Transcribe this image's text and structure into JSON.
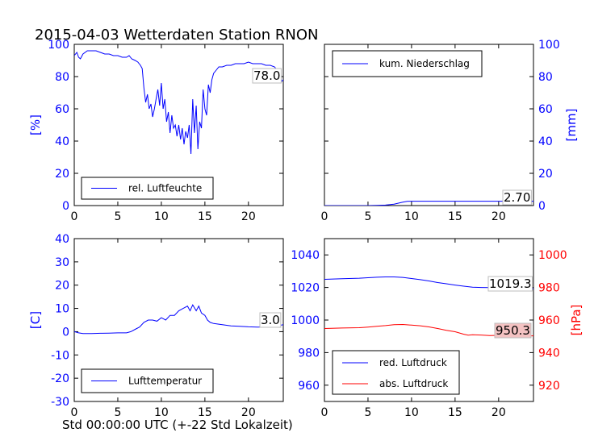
{
  "title": "2015-04-03 Wetterdaten Station RNON",
  "footer": "Std 00:00:00 UTC (+-22 Std Lokalzeit)",
  "colors": {
    "blue": "#0000ff",
    "red": "#ff0000",
    "axes": "#000000"
  },
  "chart_data": [
    {
      "id": "humidity",
      "type": "line",
      "xlim": [
        0,
        24
      ],
      "ylim": [
        0,
        100
      ],
      "xticks": [
        0,
        5,
        10,
        15,
        20
      ],
      "yticks": [
        0,
        20,
        40,
        60,
        80,
        100
      ],
      "ylabel": "[%]",
      "legend": "rel. Luftfeuchte",
      "legend_position": "lower-left",
      "last_value_label": "78.0",
      "series": [
        {
          "name": "rel. Luftfeuchte",
          "color": "#0000ff",
          "x": [
            0,
            0.3,
            0.5,
            0.7,
            1,
            1.5,
            2,
            2.5,
            3,
            3.5,
            4,
            4.5,
            5,
            5.5,
            6,
            6.3,
            6.6,
            7,
            7.3,
            7.6,
            7.8,
            8,
            8.2,
            8.4,
            8.6,
            8.8,
            9,
            9.2,
            9.4,
            9.6,
            9.8,
            10,
            10.2,
            10.4,
            10.6,
            10.8,
            11,
            11.2,
            11.4,
            11.6,
            11.8,
            12,
            12.2,
            12.4,
            12.6,
            12.8,
            13,
            13.2,
            13.4,
            13.6,
            13.8,
            14,
            14.2,
            14.4,
            14.6,
            14.8,
            15,
            15.2,
            15.4,
            15.6,
            15.8,
            16,
            16.3,
            16.6,
            17,
            17.5,
            18,
            18.5,
            19,
            19.5,
            20,
            20.5,
            21,
            21.5,
            22,
            22.5,
            23,
            23.3,
            23.6,
            23.8,
            24
          ],
          "y": [
            93,
            95,
            92,
            91,
            94,
            96,
            96,
            96,
            95,
            94,
            94,
            93,
            93,
            92,
            92,
            93,
            91,
            90,
            89,
            87,
            85,
            73,
            64,
            69,
            60,
            63,
            55,
            60,
            66,
            72,
            62,
            76,
            60,
            66,
            52,
            58,
            45,
            56,
            48,
            50,
            43,
            50,
            41,
            48,
            38,
            46,
            42,
            50,
            32,
            66,
            45,
            62,
            35,
            52,
            48,
            72,
            60,
            56,
            75,
            70,
            78,
            82,
            84,
            86,
            86,
            87,
            87,
            88,
            88,
            88,
            89,
            88,
            88,
            88,
            87,
            87,
            86,
            84,
            82,
            77,
            78
          ]
        }
      ]
    },
    {
      "id": "precipitation",
      "type": "line",
      "xlim": [
        0,
        24
      ],
      "ylim": [
        0,
        100
      ],
      "xticks": [
        0,
        5,
        10,
        15,
        20
      ],
      "yticks": [
        0,
        20,
        40,
        60,
        80,
        100
      ],
      "ylabel": "[mm]",
      "legend": "kum. Niederschlag",
      "legend_position": "upper-left",
      "last_value_label": "2.70",
      "series": [
        {
          "name": "kum. Niederschlag",
          "color": "#0000ff",
          "x": [
            0,
            5,
            6,
            7,
            8,
            8.5,
            9,
            9.5,
            10,
            12,
            15,
            18,
            21,
            24
          ],
          "y": [
            0,
            0,
            0.1,
            0.3,
            0.9,
            1.5,
            2.1,
            2.6,
            2.7,
            2.7,
            2.7,
            2.7,
            2.7,
            2.7
          ]
        }
      ]
    },
    {
      "id": "temperature",
      "type": "line",
      "xlim": [
        0,
        24
      ],
      "ylim": [
        -30,
        40
      ],
      "xticks": [
        0,
        5,
        10,
        15,
        20
      ],
      "yticks": [
        -30,
        -20,
        -10,
        0,
        10,
        20,
        30,
        40
      ],
      "ylabel": "[C]",
      "legend": "Lufttemperatur",
      "legend_position": "lower-left",
      "last_value_label": "3.0",
      "series": [
        {
          "name": "Lufttemperatur",
          "color": "#0000ff",
          "x": [
            0,
            0.5,
            1,
            2,
            3,
            4,
            5,
            6,
            6.5,
            7,
            7.5,
            8,
            8.5,
            9,
            9.5,
            10,
            10.5,
            11,
            11.5,
            12,
            12.5,
            13,
            13.3,
            13.6,
            14,
            14.3,
            14.6,
            15,
            15.3,
            15.6,
            16,
            17,
            18,
            19,
            20,
            21,
            22,
            23,
            24
          ],
          "y": [
            0,
            -0.5,
            -0.8,
            -0.8,
            -0.7,
            -0.6,
            -0.5,
            -0.5,
            0,
            1,
            2,
            4,
            5,
            5,
            4.5,
            6,
            5,
            7,
            7,
            9,
            10,
            11,
            9,
            11.5,
            9,
            11,
            8,
            7,
            5,
            4,
            3.5,
            3,
            2.5,
            2.3,
            2.1,
            2,
            2,
            2.2,
            3
          ]
        }
      ]
    },
    {
      "id": "pressure",
      "type": "line",
      "xlim": [
        0,
        24
      ],
      "ylim": [
        950,
        1050
      ],
      "ylim_right": [
        910,
        1010
      ],
      "xticks": [
        0,
        5,
        10,
        15,
        20
      ],
      "yticks": [
        960,
        980,
        1000,
        1020,
        1040
      ],
      "yticks_right": [
        920,
        940,
        960,
        980,
        1000
      ],
      "ylabel_right": "[hPa]",
      "legend_position": "lower-left",
      "series": [
        {
          "name": "red. Luftdruck",
          "color": "#0000ff",
          "axis": "left",
          "last_value_label": "1019.3",
          "x": [
            0,
            2,
            4,
            5,
            6,
            7,
            8,
            9,
            10,
            11,
            12,
            13,
            14,
            15,
            16,
            17,
            18,
            19,
            20,
            21,
            22,
            23,
            24
          ],
          "y": [
            1025,
            1025.4,
            1025.7,
            1026,
            1026.3,
            1026.5,
            1026.5,
            1026.2,
            1025.5,
            1024.8,
            1024,
            1023,
            1022.3,
            1021.5,
            1020.8,
            1020.2,
            1020,
            1019.9,
            1019.8,
            1019.7,
            1019.6,
            1019.4,
            1019.3
          ]
        },
        {
          "name": "abs. Luftdruck",
          "color": "#ff0000",
          "axis": "right",
          "last_value_label": "950.3",
          "x": [
            0,
            2,
            4,
            5,
            6,
            7,
            8,
            9,
            10,
            11,
            12,
            13,
            14,
            15,
            16,
            16.5,
            17,
            18,
            19,
            20,
            21,
            22,
            23,
            24
          ],
          "y": [
            954.8,
            955.1,
            955.3,
            955.7,
            956.2,
            956.6,
            957.2,
            957.3,
            956.9,
            956.5,
            955.8,
            954.8,
            953.7,
            952.8,
            951.3,
            950.7,
            951,
            950.8,
            950.5,
            950.6,
            950.4,
            950.4,
            950.3,
            950.3
          ]
        }
      ]
    }
  ]
}
